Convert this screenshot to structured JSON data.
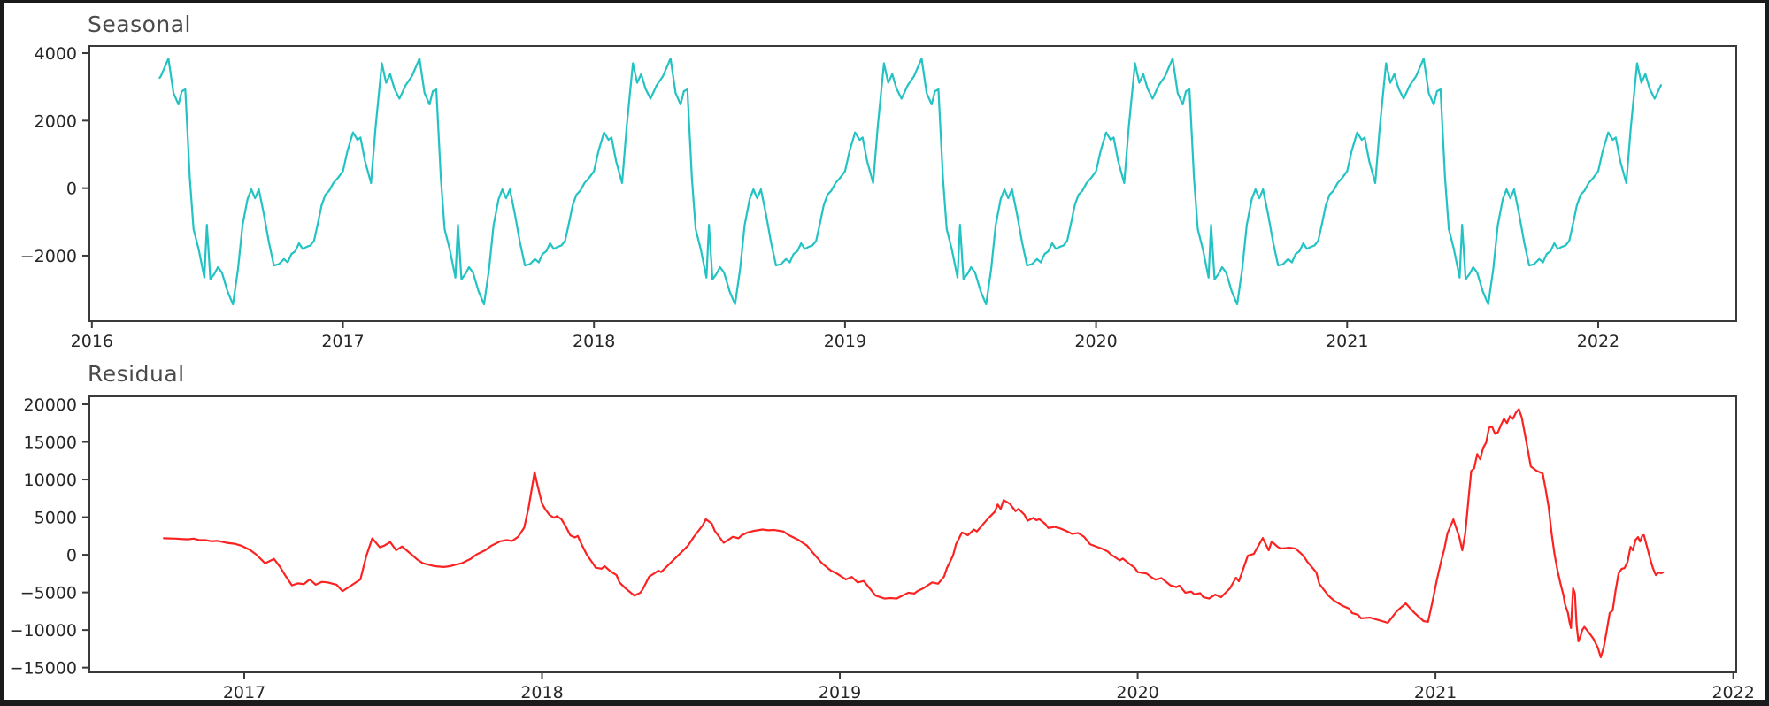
{
  "frame_color": "#1b1b1b",
  "plot_background": "#ffffff",
  "spine_color": "#3a3a3a",
  "tick_label_color": "#262626",
  "title_color": "#4a4a4a",
  "chart_data": {
    "type": "line",
    "grid": false,
    "legend": null,
    "charts": [
      {
        "id": "seasonal",
        "title": "Seasonal",
        "line_color": "#23c3c4",
        "xlim": [
          2015.99,
          2022.55
        ],
        "ylim": [
          -3940,
          4210
        ],
        "x_ticks": [
          {
            "v": 2016,
            "label": "2016"
          },
          {
            "v": 2017,
            "label": "2017"
          },
          {
            "v": 2018,
            "label": "2018"
          },
          {
            "v": 2019,
            "label": "2019"
          },
          {
            "v": 2020,
            "label": "2020"
          },
          {
            "v": 2021,
            "label": "2021"
          },
          {
            "v": 2022,
            "label": "2022"
          }
        ],
        "y_ticks": [
          {
            "v": -2000,
            "label": "−2000"
          },
          {
            "v": 0,
            "label": "0"
          },
          {
            "v": 2000,
            "label": "2000"
          },
          {
            "v": 4000,
            "label": "4000"
          }
        ],
        "series_type": "periodic",
        "period": 1,
        "t_start": 2016.27,
        "t_end": 2022.25,
        "pattern_t": [
          0.0,
          0.018,
          0.04,
          0.058,
          0.07,
          0.088,
          0.112,
          0.13,
          0.155,
          0.172,
          0.188,
          0.205,
          0.225,
          0.25,
          0.275,
          0.305,
          0.325,
          0.345,
          0.358,
          0.372,
          0.39,
          0.405,
          0.425,
          0.448,
          0.458,
          0.472,
          0.487,
          0.502,
          0.518,
          0.54,
          0.562,
          0.582,
          0.6,
          0.62,
          0.635,
          0.65,
          0.665,
          0.685,
          0.705,
          0.725,
          0.745,
          0.765,
          0.78,
          0.795,
          0.81,
          0.825,
          0.84,
          0.855,
          0.87,
          0.885,
          0.9,
          0.915,
          0.93,
          0.945,
          0.962,
          0.98
        ],
        "pattern_v": [
          500,
          1100,
          1650,
          1430,
          1500,
          800,
          150,
          1800,
          3700,
          3120,
          3380,
          2950,
          2650,
          3050,
          3320,
          3840,
          2820,
          2480,
          2870,
          2925,
          300,
          -1215,
          -1800,
          -2650,
          -1085,
          -2700,
          -2550,
          -2343,
          -2500,
          -3050,
          -3443,
          -2400,
          -1100,
          -325,
          -37,
          -300,
          -37,
          -770,
          -1600,
          -2290,
          -2250,
          -2100,
          -2200,
          -1950,
          -1870,
          -1635,
          -1800,
          -1740,
          -1700,
          -1557,
          -1050,
          -509,
          -195,
          -80,
          150,
          300
        ]
      },
      {
        "id": "residual",
        "title": "Residual",
        "line_color": "#fb2222",
        "xlim": [
          2016.48,
          2022.01
        ],
        "ylim": [
          -15630,
          21060
        ],
        "x_ticks": [
          {
            "v": 2017,
            "label": "2017"
          },
          {
            "v": 2018,
            "label": "2018"
          },
          {
            "v": 2019,
            "label": "2019"
          },
          {
            "v": 2020,
            "label": "2020"
          },
          {
            "v": 2021,
            "label": "2021"
          },
          {
            "v": 2022,
            "label": "2022"
          }
        ],
        "y_ticks": [
          {
            "v": -15000,
            "label": "−15000"
          },
          {
            "v": -10000,
            "label": "−10000"
          },
          {
            "v": -5000,
            "label": "−5000"
          },
          {
            "v": 0,
            "label": "0"
          },
          {
            "v": 5000,
            "label": "5000"
          },
          {
            "v": 10000,
            "label": "10000"
          },
          {
            "v": 15000,
            "label": "15000"
          },
          {
            "v": 20000,
            "label": "20000"
          }
        ],
        "series_type": "points",
        "t": [
          2016.73,
          2016.77,
          2016.79,
          2016.81,
          2016.83,
          2016.85,
          2016.87,
          2016.89,
          2016.91,
          2016.94,
          2016.97,
          2016.99,
          2017.02,
          2017.04,
          2017.07,
          2017.1,
          2017.12,
          2017.14,
          2017.16,
          2017.18,
          2017.2,
          2017.22,
          2017.24,
          2017.26,
          2017.28,
          2017.31,
          2017.33,
          2017.36,
          2017.39,
          2017.41,
          2017.43,
          2017.455,
          2017.47,
          2017.49,
          2017.51,
          2017.53,
          2017.56,
          2017.58,
          2017.6,
          2017.64,
          2017.67,
          2017.69,
          2017.71,
          2017.73,
          2017.76,
          2017.78,
          2017.81,
          2017.83,
          2017.86,
          2017.88,
          2017.9,
          2017.92,
          2017.94,
          2017.955,
          2017.975,
          2017.985,
          2018.0,
          2018.01,
          2018.025,
          2018.04,
          2018.05,
          2018.065,
          2018.08,
          2018.095,
          2018.11,
          2018.12,
          2018.135,
          2018.15,
          2018.17,
          2018.18,
          2018.2,
          2018.21,
          2018.23,
          2018.25,
          2018.26,
          2018.28,
          2018.31,
          2018.33,
          2018.34,
          2018.36,
          2018.38,
          2018.39,
          2018.4,
          2018.41,
          2018.44,
          2018.46,
          2018.49,
          2018.51,
          2018.54,
          2018.55,
          2018.57,
          2018.58,
          2018.61,
          2018.63,
          2018.64,
          2018.66,
          2018.67,
          2018.69,
          2018.71,
          2018.74,
          2018.76,
          2018.78,
          2018.81,
          2018.83,
          2018.86,
          2018.89,
          2018.91,
          2018.94,
          2018.97,
          2018.99,
          2019.02,
          2019.04,
          2019.06,
          2019.08,
          2019.1,
          2019.12,
          2019.15,
          2019.17,
          2019.19,
          2019.21,
          2019.23,
          2019.25,
          2019.26,
          2019.28,
          2019.31,
          2019.33,
          2019.35,
          2019.36,
          2019.38,
          2019.39,
          2019.41,
          2019.43,
          2019.45,
          2019.46,
          2019.47,
          2019.5,
          2019.52,
          2019.53,
          2019.54,
          2019.55,
          2019.57,
          2019.58,
          2019.59,
          2019.6,
          2019.62,
          2019.63,
          2019.65,
          2019.66,
          2019.67,
          2019.69,
          2019.7,
          2019.72,
          2019.74,
          2019.76,
          2019.78,
          2019.8,
          2019.82,
          2019.84,
          2019.86,
          2019.88,
          2019.9,
          2019.91,
          2019.94,
          2019.95,
          2019.97,
          2019.99,
          2020.0,
          2020.03,
          2020.05,
          2020.06,
          2020.08,
          2020.11,
          2020.13,
          2020.14,
          2020.16,
          2020.18,
          2020.19,
          2020.21,
          2020.22,
          2020.24,
          2020.26,
          2020.28,
          2020.31,
          2020.33,
          2020.34,
          2020.37,
          2020.39,
          2020.42,
          2020.44,
          2020.45,
          2020.47,
          2020.48,
          2020.51,
          2020.53,
          2020.55,
          2020.56,
          2020.57,
          2020.6,
          2020.61,
          2020.64,
          2020.66,
          2020.68,
          2020.69,
          2020.71,
          2020.72,
          2020.74,
          2020.75,
          2020.78,
          2020.82,
          2020.84,
          2020.87,
          2020.9,
          2020.93,
          2020.96,
          2020.975,
          2020.99,
          2021.005,
          2021.02,
          2021.03,
          2021.04,
          2021.06,
          2021.08,
          2021.09,
          2021.1,
          2021.11,
          2021.12,
          2021.13,
          2021.14,
          2021.15,
          2021.16,
          2021.17,
          2021.18,
          2021.19,
          2021.2,
          2021.21,
          2021.22,
          2021.23,
          2021.24,
          2021.25,
          2021.26,
          2021.27,
          2021.28,
          2021.29,
          2021.3,
          2021.31,
          2021.32,
          2021.34,
          2021.36,
          2021.37,
          2021.38,
          2021.39,
          2021.4,
          2021.41,
          2021.42,
          2021.43,
          2021.435,
          2021.445,
          2021.45,
          2021.455,
          2021.462,
          2021.468,
          2021.474,
          2021.48,
          2021.487,
          2021.493,
          2021.5,
          2021.515,
          2021.53,
          2021.545,
          2021.555,
          2021.565,
          2021.575,
          2021.585,
          2021.595,
          2021.605,
          2021.615,
          2021.625,
          2021.635,
          2021.645,
          2021.655,
          2021.663,
          2021.672,
          2021.68,
          2021.687,
          2021.695,
          2021.7,
          2021.712,
          2021.722,
          2021.73,
          2021.74,
          2021.75,
          2021.758,
          2021.764
        ],
        "v": [
          2200,
          2150,
          2100,
          2050,
          2150,
          1950,
          1950,
          1800,
          1850,
          1600,
          1450,
          1210,
          630,
          40,
          -1130,
          -550,
          -1600,
          -2890,
          -4060,
          -3800,
          -3900,
          -3280,
          -3980,
          -3600,
          -3670,
          -3980,
          -4840,
          -4060,
          -3280,
          -150,
          2190,
          1000,
          1210,
          1700,
          600,
          1100,
          100,
          -600,
          -1130,
          -1520,
          -1620,
          -1520,
          -1300,
          -1130,
          -550,
          40,
          630,
          1210,
          1800,
          1950,
          1850,
          2400,
          3600,
          6290,
          11000,
          9200,
          6800,
          6100,
          5300,
          4930,
          5150,
          4730,
          3750,
          2580,
          2300,
          2500,
          1210,
          40,
          -1100,
          -1720,
          -1850,
          -1520,
          -2200,
          -2700,
          -3670,
          -4450,
          -5430,
          -5040,
          -4450,
          -2890,
          -2400,
          -2110,
          -2300,
          -1910,
          -740,
          40,
          1210,
          2390,
          3950,
          4730,
          4140,
          3170,
          1600,
          2100,
          2390,
          2200,
          2580,
          2970,
          3170,
          3360,
          3260,
          3300,
          3100,
          2580,
          2000,
          1210,
          240,
          -1130,
          -2110,
          -2500,
          -3280,
          -2950,
          -3670,
          -3480,
          -4450,
          -5430,
          -5820,
          -5750,
          -5820,
          -5430,
          -5040,
          -5150,
          -4840,
          -4450,
          -3670,
          -3850,
          -2890,
          -1720,
          -110,
          1410,
          2970,
          2600,
          3360,
          3100,
          3560,
          4930,
          5710,
          6680,
          6100,
          7270,
          6800,
          6290,
          5800,
          6100,
          5320,
          4530,
          4900,
          4600,
          4730,
          4100,
          3560,
          3700,
          3500,
          3170,
          2780,
          2900,
          2390,
          1410,
          1100,
          820,
          430,
          40,
          -740,
          -500,
          -1130,
          -1720,
          -2300,
          -2500,
          -3090,
          -3300,
          -3100,
          -4060,
          -4300,
          -4100,
          -5040,
          -4900,
          -5240,
          -5100,
          -5620,
          -5820,
          -5300,
          -5640,
          -4460,
          -3050,
          -3520,
          -120,
          120,
          2230,
          590,
          1760,
          1060,
          820,
          940,
          820,
          120,
          -350,
          -940,
          -2350,
          -3870,
          -5400,
          -6110,
          -6580,
          -6810,
          -7160,
          -7750,
          -7980,
          -8450,
          -8340,
          -8810,
          -9040,
          -7500,
          -6460,
          -7750,
          -8810,
          -8920,
          -6220,
          -3290,
          -700,
          820,
          2820,
          4700,
          2350,
          600,
          2820,
          7040,
          11150,
          11500,
          13380,
          12700,
          14200,
          14910,
          16900,
          17020,
          16080,
          16300,
          17260,
          18080,
          17500,
          18430,
          18080,
          18900,
          19370,
          18200,
          16080,
          13970,
          11740,
          11150,
          10800,
          8690,
          6340,
          2820,
          0,
          -2110,
          -3870,
          -5400,
          -6580,
          -7750,
          -8920,
          -9740,
          -4460,
          -5100,
          -9390,
          -11500,
          -10800,
          -9980,
          -9590,
          -10330,
          -11150,
          -12320,
          -13620,
          -12300,
          -10100,
          -7750,
          -7400,
          -4700,
          -2470,
          -1880,
          -1760,
          -940,
          1060,
          600,
          2000,
          2350,
          1760,
          2580,
          2600,
          820,
          -700,
          -1760,
          -2700,
          -2350,
          -2450,
          -2350
        ]
      }
    ]
  }
}
